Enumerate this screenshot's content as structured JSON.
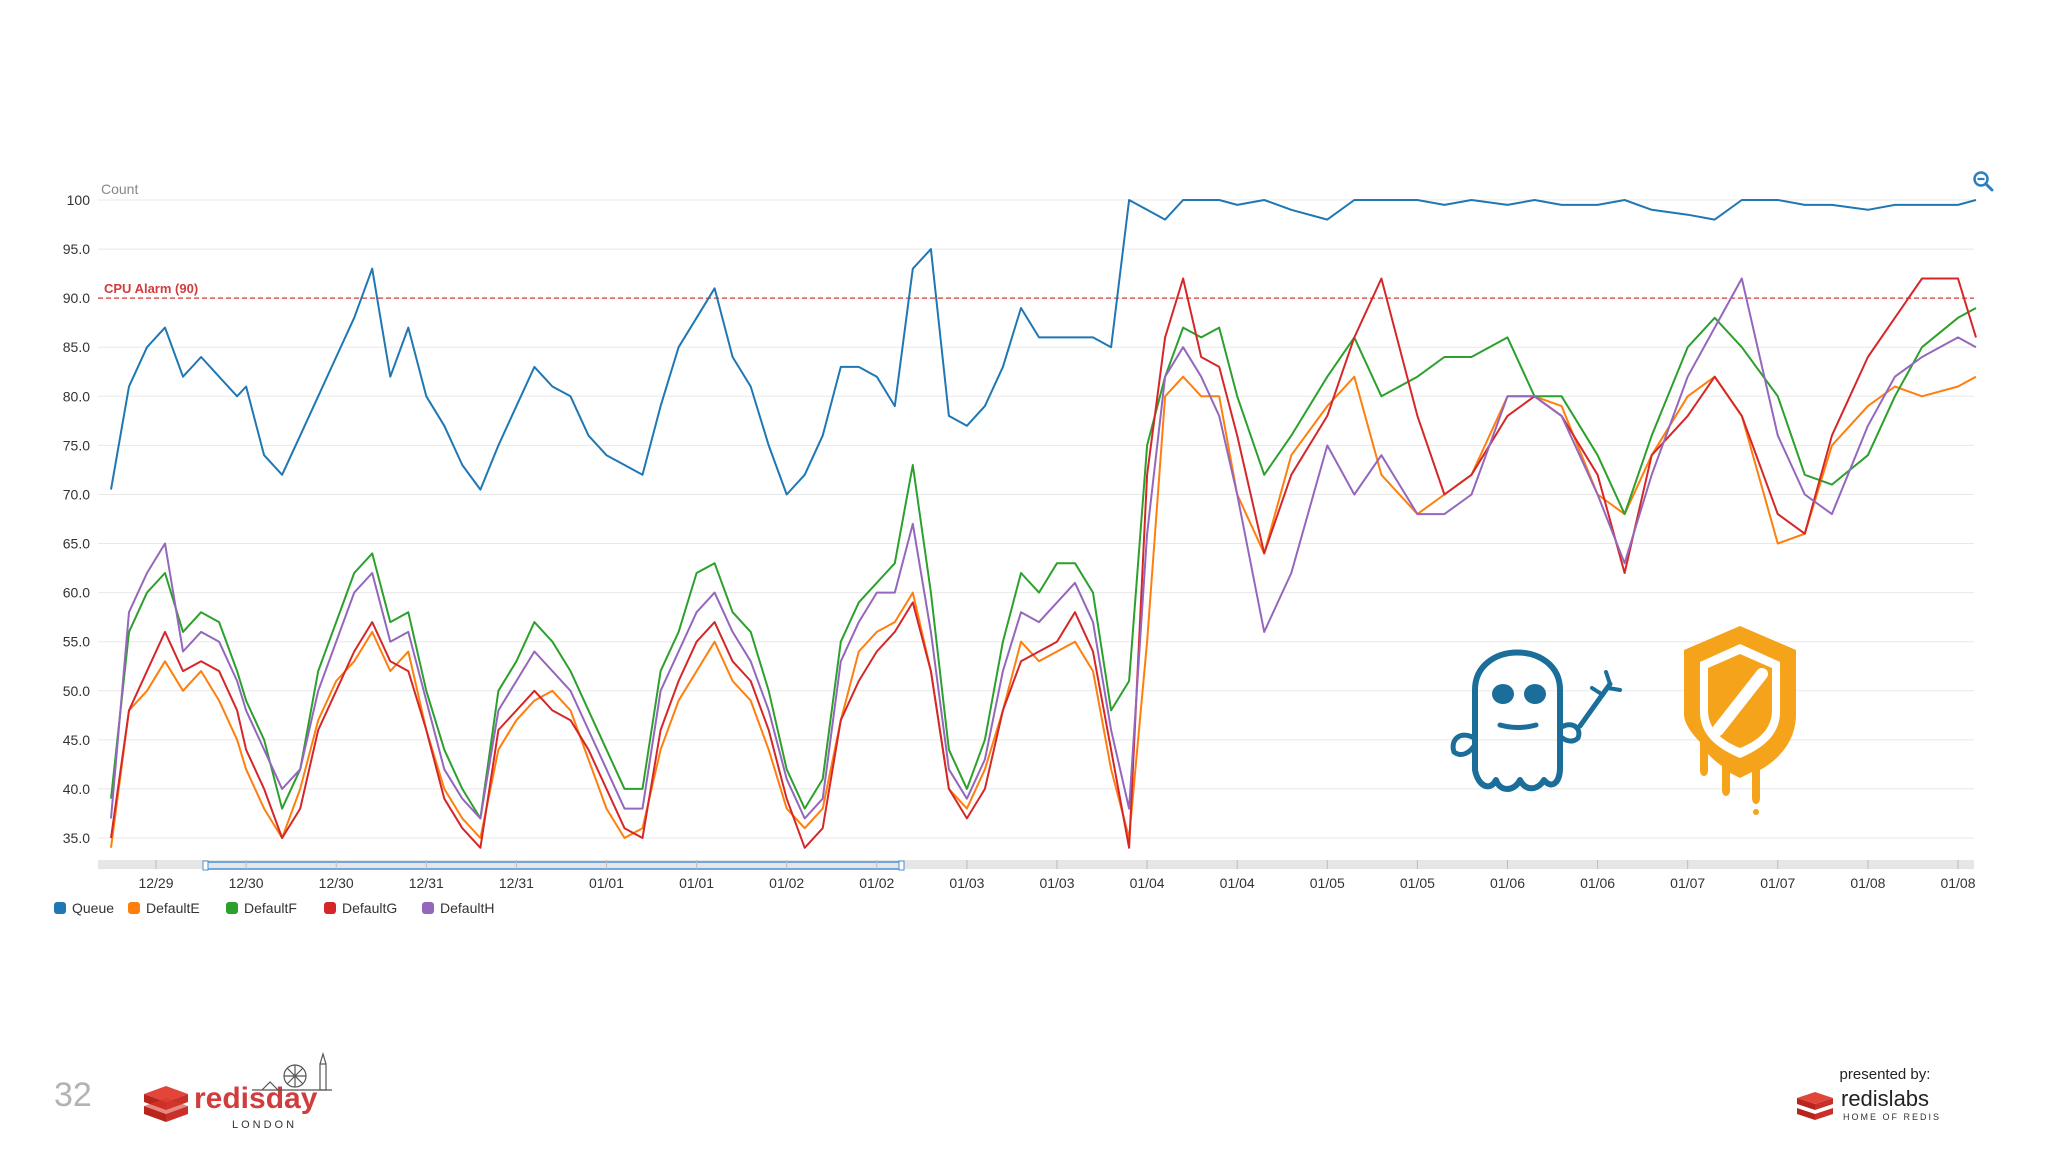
{
  "slide": {
    "number": "32",
    "presented_by": "presented by:",
    "redisday_logo_text": "redisday",
    "redisday_logo_subtext": "LONDON",
    "redislabs_logo_text": "redislabs",
    "redislabs_logo_subtext": "HOME OF REDIS"
  },
  "icons": {
    "zoom": "zoom-out-icon",
    "spectre": "spectre-ghost-logo",
    "meltdown": "meltdown-shield-logo"
  },
  "colors": {
    "Queue": "#1f77b4",
    "DefaultE": "#ff7f0e",
    "DefaultF": "#2ca02c",
    "DefaultG": "#d62728",
    "DefaultH": "#9467bd",
    "alarm": "#d13c3c",
    "spectre": "#1a6e99",
    "meltdown": "#f5a31a"
  },
  "chart_data": {
    "type": "line",
    "ylabel": "Count",
    "ylim": [
      33,
      101
    ],
    "yticks": [
      "100",
      "95.0",
      "90.0",
      "85.0",
      "80.0",
      "75.0",
      "70.0",
      "65.0",
      "60.0",
      "55.0",
      "50.0",
      "45.0",
      "40.0",
      "35.0"
    ],
    "xlabels": [
      "12/29",
      "12/30",
      "12/30",
      "12/31",
      "12/31",
      "01/01",
      "01/01",
      "01/02",
      "01/02",
      "01/03",
      "01/03",
      "01/04",
      "01/04",
      "01/05",
      "01/05",
      "01/06",
      "01/06",
      "01/07",
      "01/07",
      "01/08",
      "01/08"
    ],
    "x_range_index": [
      0,
      21
    ],
    "threshold": {
      "label": "CPU Alarm (90)",
      "value": 90
    },
    "legend": [
      "Queue",
      "DefaultE",
      "DefaultF",
      "DefaultG",
      "DefaultH"
    ],
    "legend_position": "bottom-left",
    "grid": true,
    "series": [
      {
        "name": "Queue",
        "x": [
          -0.5,
          -0.3,
          -0.1,
          0.1,
          0.3,
          0.5,
          0.7,
          0.9,
          1.0,
          1.2,
          1.4,
          1.6,
          1.8,
          2.0,
          2.2,
          2.4,
          2.6,
          2.8,
          3.0,
          3.2,
          3.4,
          3.6,
          3.8,
          4.0,
          4.2,
          4.4,
          4.6,
          4.8,
          5.0,
          5.2,
          5.4,
          5.6,
          5.8,
          6.0,
          6.2,
          6.4,
          6.6,
          6.8,
          7.0,
          7.2,
          7.4,
          7.6,
          7.8,
          8.0,
          8.2,
          8.4,
          8.6,
          8.8,
          9.0,
          9.2,
          9.4,
          9.6,
          9.8,
          10.0,
          10.2,
          10.4,
          10.6,
          10.8,
          11.0,
          11.2,
          11.4,
          11.6,
          11.8,
          12.0,
          12.3,
          12.6,
          13.0,
          13.3,
          13.6,
          14.0,
          14.3,
          14.6,
          15.0,
          15.3,
          15.6,
          16.0,
          16.3,
          16.6,
          17.0,
          17.3,
          17.6,
          18.0,
          18.3,
          18.6,
          19.0,
          19.3,
          19.6,
          20.0,
          20.2
        ],
        "values": [
          70.5,
          81,
          85,
          87,
          82,
          84,
          82,
          80,
          81,
          74,
          72,
          76,
          80,
          84,
          88,
          93,
          82,
          87,
          80,
          77,
          73,
          70.5,
          75,
          79,
          83,
          81,
          80,
          76,
          74,
          73,
          72,
          79,
          85,
          88,
          91,
          84,
          81,
          75,
          70,
          72,
          76,
          83,
          83,
          82,
          79,
          93,
          95,
          78,
          77,
          79,
          83,
          89,
          86,
          86,
          86,
          86,
          85,
          100,
          99,
          98,
          100,
          100,
          100,
          99.5,
          100,
          99,
          98,
          100,
          100,
          100,
          99.5,
          100,
          99.5,
          100,
          99.5,
          99.5,
          100,
          99,
          98.5,
          98,
          100,
          100,
          99.5,
          99.5,
          99,
          99.5,
          99.5,
          99.5,
          100
        ]
      },
      {
        "name": "DefaultE",
        "x": [
          -0.5,
          -0.3,
          -0.1,
          0.1,
          0.3,
          0.5,
          0.7,
          0.9,
          1.0,
          1.2,
          1.4,
          1.6,
          1.8,
          2.0,
          2.2,
          2.4,
          2.6,
          2.8,
          3.0,
          3.2,
          3.4,
          3.6,
          3.8,
          4.0,
          4.2,
          4.4,
          4.6,
          4.8,
          5.0,
          5.2,
          5.4,
          5.6,
          5.8,
          6.0,
          6.2,
          6.4,
          6.6,
          6.8,
          7.0,
          7.2,
          7.4,
          7.6,
          7.8,
          8.0,
          8.2,
          8.4,
          8.6,
          8.8,
          9.0,
          9.2,
          9.4,
          9.6,
          9.8,
          10.0,
          10.2,
          10.4,
          10.6,
          10.8,
          11.0,
          11.2,
          11.4,
          11.6,
          11.8,
          12.0,
          12.3,
          12.6,
          13.0,
          13.3,
          13.6,
          14.0,
          14.3,
          14.6,
          15.0,
          15.3,
          15.6,
          16.0,
          16.3,
          16.6,
          17.0,
          17.3,
          17.6,
          18.0,
          18.3,
          18.6,
          19.0,
          19.3,
          19.6,
          20.0,
          20.2
        ],
        "values": [
          34,
          48,
          50,
          53,
          50,
          52,
          49,
          45,
          42,
          38,
          35,
          40,
          47,
          51,
          53,
          56,
          52,
          54,
          46,
          40,
          37,
          35,
          44,
          47,
          49,
          50,
          48,
          43,
          38,
          35,
          36,
          44,
          49,
          52,
          55,
          51,
          49,
          44,
          38,
          36,
          38,
          47,
          54,
          56,
          57,
          60,
          52,
          40,
          38,
          42,
          48,
          55,
          53,
          54,
          55,
          52,
          42,
          35,
          55,
          80,
          82,
          80,
          80,
          70,
          64,
          74,
          79,
          82,
          72,
          68,
          70,
          72,
          80,
          80,
          79,
          70,
          68,
          74,
          80,
          82,
          78,
          65,
          66,
          75,
          79,
          81,
          80,
          81,
          82
        ]
      },
      {
        "name": "DefaultF",
        "x": [
          -0.5,
          -0.3,
          -0.1,
          0.1,
          0.3,
          0.5,
          0.7,
          0.9,
          1.0,
          1.2,
          1.4,
          1.6,
          1.8,
          2.0,
          2.2,
          2.4,
          2.6,
          2.8,
          3.0,
          3.2,
          3.4,
          3.6,
          3.8,
          4.0,
          4.2,
          4.4,
          4.6,
          4.8,
          5.0,
          5.2,
          5.4,
          5.6,
          5.8,
          6.0,
          6.2,
          6.4,
          6.6,
          6.8,
          7.0,
          7.2,
          7.4,
          7.6,
          7.8,
          8.0,
          8.2,
          8.4,
          8.6,
          8.8,
          9.0,
          9.2,
          9.4,
          9.6,
          9.8,
          10.0,
          10.2,
          10.4,
          10.6,
          10.8,
          11.0,
          11.2,
          11.4,
          11.6,
          11.8,
          12.0,
          12.3,
          12.6,
          13.0,
          13.3,
          13.6,
          14.0,
          14.3,
          14.6,
          15.0,
          15.3,
          15.6,
          16.0,
          16.3,
          16.6,
          17.0,
          17.3,
          17.6,
          18.0,
          18.3,
          18.6,
          19.0,
          19.3,
          19.6,
          20.0,
          20.2
        ],
        "values": [
          39,
          56,
          60,
          62,
          56,
          58,
          57,
          52,
          49,
          45,
          38,
          42,
          52,
          57,
          62,
          64,
          57,
          58,
          50,
          44,
          40,
          37,
          50,
          53,
          57,
          55,
          52,
          48,
          44,
          40,
          40,
          52,
          56,
          62,
          63,
          58,
          56,
          50,
          42,
          38,
          41,
          55,
          59,
          61,
          63,
          73,
          60,
          44,
          40,
          45,
          55,
          62,
          60,
          63,
          63,
          60,
          48,
          51,
          75,
          82,
          87,
          86,
          87,
          80,
          72,
          76,
          82,
          86,
          80,
          82,
          84,
          84,
          86,
          80,
          80,
          74,
          68,
          76,
          85,
          88,
          85,
          80,
          72,
          71,
          74,
          80,
          85,
          88,
          89
        ]
      },
      {
        "name": "DefaultG",
        "x": [
          -0.5,
          -0.3,
          -0.1,
          0.1,
          0.3,
          0.5,
          0.7,
          0.9,
          1.0,
          1.2,
          1.4,
          1.6,
          1.8,
          2.0,
          2.2,
          2.4,
          2.6,
          2.8,
          3.0,
          3.2,
          3.4,
          3.6,
          3.8,
          4.0,
          4.2,
          4.4,
          4.6,
          4.8,
          5.0,
          5.2,
          5.4,
          5.6,
          5.8,
          6.0,
          6.2,
          6.4,
          6.6,
          6.8,
          7.0,
          7.2,
          7.4,
          7.6,
          7.8,
          8.0,
          8.2,
          8.4,
          8.6,
          8.8,
          9.0,
          9.2,
          9.4,
          9.6,
          9.8,
          10.0,
          10.2,
          10.4,
          10.6,
          10.8,
          11.0,
          11.2,
          11.4,
          11.6,
          11.8,
          12.0,
          12.3,
          12.6,
          13.0,
          13.3,
          13.6,
          14.0,
          14.3,
          14.6,
          15.0,
          15.3,
          15.6,
          16.0,
          16.3,
          16.6,
          17.0,
          17.3,
          17.6,
          18.0,
          18.3,
          18.6,
          19.0,
          19.3,
          19.6,
          20.0,
          20.2
        ],
        "values": [
          35,
          48,
          52,
          56,
          52,
          53,
          52,
          48,
          44,
          40,
          35,
          38,
          46,
          50,
          54,
          57,
          53,
          52,
          46,
          39,
          36,
          34,
          46,
          48,
          50,
          48,
          47,
          44,
          40,
          36,
          35,
          46,
          51,
          55,
          57,
          53,
          51,
          46,
          39,
          34,
          36,
          47,
          51,
          54,
          56,
          59,
          52,
          40,
          37,
          40,
          48,
          53,
          54,
          55,
          58,
          54,
          44,
          34,
          72,
          86,
          92,
          84,
          83,
          76,
          64,
          72,
          78,
          86,
          92,
          78,
          70,
          72,
          78,
          80,
          78,
          72,
          62,
          74,
          78,
          82,
          78,
          68,
          66,
          76,
          84,
          88,
          92,
          92,
          86
        ]
      },
      {
        "name": "DefaultH",
        "x": [
          -0.5,
          -0.3,
          -0.1,
          0.1,
          0.3,
          0.5,
          0.7,
          0.9,
          1.0,
          1.2,
          1.4,
          1.6,
          1.8,
          2.0,
          2.2,
          2.4,
          2.6,
          2.8,
          3.0,
          3.2,
          3.4,
          3.6,
          3.8,
          4.0,
          4.2,
          4.4,
          4.6,
          4.8,
          5.0,
          5.2,
          5.4,
          5.6,
          5.8,
          6.0,
          6.2,
          6.4,
          6.6,
          6.8,
          7.0,
          7.2,
          7.4,
          7.6,
          7.8,
          8.0,
          8.2,
          8.4,
          8.6,
          8.8,
          9.0,
          9.2,
          9.4,
          9.6,
          9.8,
          10.0,
          10.2,
          10.4,
          10.6,
          10.8,
          11.0,
          11.2,
          11.4,
          11.6,
          11.8,
          12.0,
          12.3,
          12.6,
          13.0,
          13.3,
          13.6,
          14.0,
          14.3,
          14.6,
          15.0,
          15.3,
          15.6,
          16.0,
          16.3,
          16.6,
          17.0,
          17.3,
          17.6,
          18.0,
          18.3,
          18.6,
          19.0,
          19.3,
          19.6,
          20.0,
          20.2
        ],
        "values": [
          37,
          58,
          62,
          65,
          54,
          56,
          55,
          51,
          48,
          44,
          40,
          42,
          50,
          55,
          60,
          62,
          55,
          56,
          49,
          42,
          39,
          37,
          48,
          51,
          54,
          52,
          50,
          46,
          42,
          38,
          38,
          50,
          54,
          58,
          60,
          56,
          53,
          48,
          41,
          37,
          39,
          53,
          57,
          60,
          60,
          67,
          56,
          42,
          39,
          43,
          52,
          58,
          57,
          59,
          61,
          57,
          46,
          38,
          66,
          82,
          85,
          82,
          78,
          70,
          56,
          62,
          75,
          70,
          74,
          68,
          68,
          70,
          80,
          80,
          78,
          70,
          63,
          72,
          82,
          87,
          92,
          76,
          70,
          68,
          77,
          82,
          84,
          86,
          85
        ]
      }
    ]
  }
}
